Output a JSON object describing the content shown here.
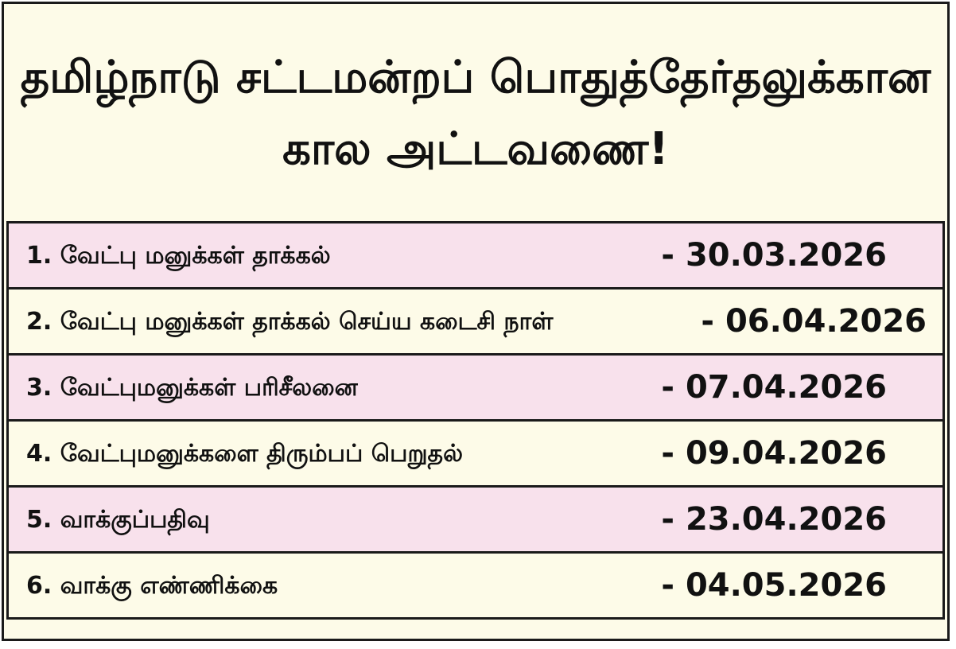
{
  "title": {
    "line1": "தமிழ்நாடு சட்டமன்றப் பொதுத்தேர்தலுக்கான",
    "line2": "கால அட்டவணை!"
  },
  "colors": {
    "row_pink": "#f8e1ec",
    "row_cream": "#fdfbe8",
    "border": "#1a1a1a"
  },
  "schedule": [
    {
      "label": "1. வேட்பு மனுக்கள் தாக்கல்",
      "date": "- 30.03.2026"
    },
    {
      "label": "2. வேட்பு மனுக்கள் தாக்கல் செய்ய  கடைசி நாள்",
      "date": "- 06.04.2026"
    },
    {
      "label": "3. வேட்புமனுக்கள் பரிசீலனை",
      "date": "- 07.04.2026"
    },
    {
      "label": "4. வேட்புமனுக்களை திரும்பப் பெறுதல்",
      "date": "- 09.04.2026"
    },
    {
      "label": "5. வாக்குப்பதிவு",
      "date": "- 23.04.2026"
    },
    {
      "label": "6. வாக்கு எண்ணிக்கை",
      "date": "- 04.05.2026"
    }
  ]
}
